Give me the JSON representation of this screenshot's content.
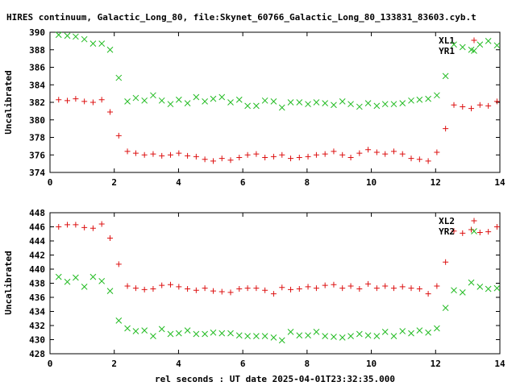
{
  "figure": {
    "title": "HIRES continuum, Galactic_Long_80, file:Skynet_60766_Galactic_Long_80_133831_83603.cyb.t",
    "xlabel": "rel seconds : UT date 2025-04-01T23:32:35.000"
  },
  "colors": {
    "red": "#dd1111",
    "green": "#22bb22",
    "axis": "#000000",
    "background": "#ffffff"
  },
  "chart_data": [
    {
      "type": "scatter",
      "title": "",
      "xlabel": "",
      "ylabel": "Uncalibrated",
      "xlim": [
        0,
        14
      ],
      "ylim": [
        374,
        390
      ],
      "xticks": [
        0,
        2,
        4,
        6,
        8,
        10,
        12,
        14
      ],
      "yticks": [
        374,
        376,
        378,
        380,
        382,
        384,
        386,
        388,
        390
      ],
      "grid": false,
      "legend": "top-right",
      "series": [
        {
          "name": "XL1",
          "marker": "plus",
          "color": "#dd1111",
          "x": [
            0.27,
            0.54,
            0.8,
            1.07,
            1.34,
            1.61,
            1.87,
            2.14,
            2.41,
            2.67,
            2.94,
            3.21,
            3.48,
            3.75,
            4.01,
            4.28,
            4.55,
            4.82,
            5.08,
            5.35,
            5.62,
            5.89,
            6.15,
            6.42,
            6.69,
            6.96,
            7.22,
            7.49,
            7.76,
            8.03,
            8.29,
            8.56,
            8.83,
            9.1,
            9.36,
            9.63,
            9.9,
            10.17,
            10.43,
            10.7,
            10.97,
            11.24,
            11.5,
            11.77,
            12.04,
            12.31,
            12.57,
            12.84,
            13.11,
            13.38,
            13.64,
            13.91
          ],
          "y": [
            382.3,
            382.2,
            382.4,
            382.1,
            382.0,
            382.3,
            380.9,
            378.2,
            376.4,
            376.2,
            376.0,
            376.1,
            375.9,
            376.0,
            376.2,
            375.9,
            375.8,
            375.5,
            375.3,
            375.6,
            375.4,
            375.7,
            376.0,
            376.1,
            375.7,
            375.8,
            376.0,
            375.6,
            375.7,
            375.8,
            376.0,
            376.1,
            376.4,
            376.0,
            375.7,
            376.2,
            376.6,
            376.3,
            376.1,
            376.4,
            376.1,
            375.6,
            375.5,
            375.3,
            376.3,
            379.0,
            381.7,
            381.5,
            381.3,
            381.7,
            381.6,
            382.1
          ]
        },
        {
          "name": "YR1",
          "marker": "cross",
          "color": "#22bb22",
          "x": [
            0.27,
            0.54,
            0.8,
            1.07,
            1.34,
            1.61,
            1.87,
            2.14,
            2.41,
            2.67,
            2.94,
            3.21,
            3.48,
            3.75,
            4.01,
            4.28,
            4.55,
            4.82,
            5.08,
            5.35,
            5.62,
            5.89,
            6.15,
            6.42,
            6.69,
            6.96,
            7.22,
            7.49,
            7.76,
            8.03,
            8.29,
            8.56,
            8.83,
            9.1,
            9.36,
            9.63,
            9.9,
            10.17,
            10.43,
            10.7,
            10.97,
            11.24,
            11.5,
            11.77,
            12.04,
            12.31,
            12.57,
            12.84,
            13.11,
            13.38,
            13.64,
            13.91
          ],
          "y": [
            389.7,
            389.6,
            389.5,
            389.2,
            388.7,
            388.7,
            388.0,
            384.8,
            382.1,
            382.5,
            382.2,
            382.8,
            382.2,
            381.8,
            382.3,
            381.9,
            382.6,
            382.1,
            382.4,
            382.6,
            382.0,
            382.3,
            381.6,
            381.6,
            382.2,
            382.1,
            381.4,
            382.0,
            382.0,
            381.8,
            382.0,
            381.9,
            381.7,
            382.1,
            381.8,
            381.5,
            381.9,
            381.6,
            381.8,
            381.8,
            381.9,
            382.2,
            382.3,
            382.4,
            382.8,
            385.0,
            388.6,
            388.3,
            388.0,
            388.6,
            389.0,
            388.5
          ]
        }
      ]
    },
    {
      "type": "scatter",
      "title": "",
      "xlabel": "rel seconds : UT date 2025-04-01T23:32:35.000",
      "ylabel": "Uncalibrated",
      "xlim": [
        0,
        14
      ],
      "ylim": [
        428,
        448
      ],
      "xticks": [
        0,
        2,
        4,
        6,
        8,
        10,
        12,
        14
      ],
      "yticks": [
        428,
        430,
        432,
        434,
        436,
        438,
        440,
        442,
        444,
        446,
        448
      ],
      "grid": false,
      "legend": "top-right",
      "series": [
        {
          "name": "XL2",
          "marker": "plus",
          "color": "#dd1111",
          "x": [
            0.27,
            0.54,
            0.8,
            1.07,
            1.34,
            1.61,
            1.87,
            2.14,
            2.41,
            2.67,
            2.94,
            3.21,
            3.48,
            3.75,
            4.01,
            4.28,
            4.55,
            4.82,
            5.08,
            5.35,
            5.62,
            5.89,
            6.15,
            6.42,
            6.69,
            6.96,
            7.22,
            7.49,
            7.76,
            8.03,
            8.29,
            8.56,
            8.83,
            9.1,
            9.36,
            9.63,
            9.9,
            10.17,
            10.43,
            10.7,
            10.97,
            11.24,
            11.5,
            11.77,
            12.04,
            12.31,
            12.57,
            12.84,
            13.11,
            13.38,
            13.64,
            13.91
          ],
          "y": [
            446.0,
            446.3,
            446.3,
            445.9,
            445.8,
            446.4,
            444.4,
            440.7,
            437.6,
            437.3,
            437.1,
            437.2,
            437.7,
            437.8,
            437.5,
            437.2,
            437.0,
            437.3,
            436.9,
            436.8,
            436.7,
            437.2,
            437.3,
            437.3,
            437.0,
            436.5,
            437.4,
            437.1,
            437.2,
            437.5,
            437.3,
            437.7,
            437.8,
            437.3,
            437.6,
            437.2,
            437.9,
            437.3,
            437.6,
            437.3,
            437.5,
            437.3,
            437.2,
            436.5,
            437.6,
            441.0,
            445.4,
            445.1,
            445.6,
            445.2,
            445.3,
            446.0
          ]
        },
        {
          "name": "YR2",
          "marker": "cross",
          "color": "#22bb22",
          "x": [
            0.27,
            0.54,
            0.8,
            1.07,
            1.34,
            1.61,
            1.87,
            2.14,
            2.41,
            2.67,
            2.94,
            3.21,
            3.48,
            3.75,
            4.01,
            4.28,
            4.55,
            4.82,
            5.08,
            5.35,
            5.62,
            5.89,
            6.15,
            6.42,
            6.69,
            6.96,
            7.22,
            7.49,
            7.76,
            8.03,
            8.29,
            8.56,
            8.83,
            9.1,
            9.36,
            9.63,
            9.9,
            10.17,
            10.43,
            10.7,
            10.97,
            11.24,
            11.5,
            11.77,
            12.04,
            12.31,
            12.57,
            12.84,
            13.11,
            13.38,
            13.64,
            13.91
          ],
          "y": [
            438.9,
            438.2,
            438.8,
            437.5,
            438.9,
            438.3,
            436.9,
            432.7,
            431.6,
            431.2,
            431.3,
            430.5,
            431.5,
            430.8,
            430.9,
            431.3,
            430.8,
            430.8,
            431.0,
            430.9,
            430.9,
            430.6,
            430.5,
            430.5,
            430.5,
            430.3,
            429.9,
            431.1,
            430.6,
            430.6,
            431.1,
            430.5,
            430.4,
            430.3,
            430.5,
            430.8,
            430.6,
            430.5,
            431.1,
            430.5,
            431.2,
            430.9,
            431.3,
            431.0,
            431.6,
            434.5,
            437.0,
            436.7,
            438.1,
            437.5,
            437.2,
            437.3
          ]
        }
      ]
    }
  ]
}
